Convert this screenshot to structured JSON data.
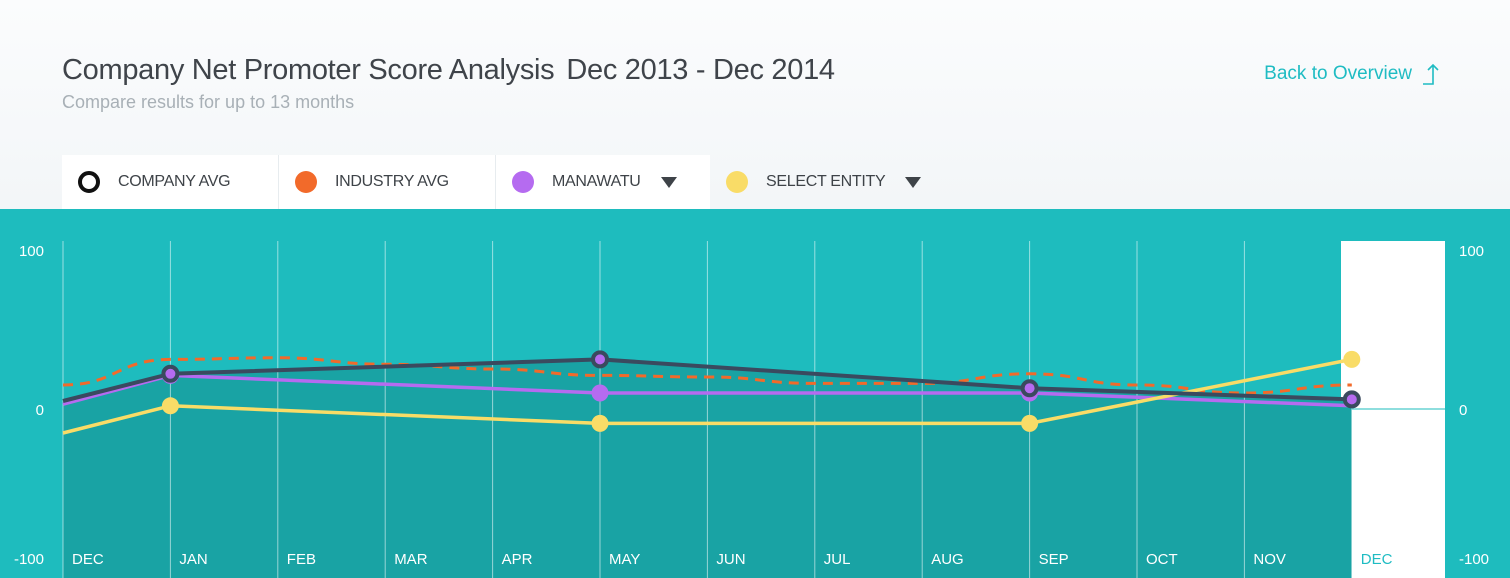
{
  "header": {
    "title": "Company Net Promoter Score Analysis",
    "date_range": "Dec 2013 - Dec 2014",
    "subtitle": "Compare results for up to 13 months",
    "back_link": "Back to Overview"
  },
  "legend": [
    {
      "label": "COMPANY AVG",
      "color": "#111111",
      "icon": "ring-icon",
      "dropdown": false
    },
    {
      "label": "INDUSTRY AVG",
      "color": "#f26a2a",
      "icon": "dot-icon",
      "dropdown": false
    },
    {
      "label": "MANAWATU",
      "color": "#b56bf0",
      "icon": "dot-icon",
      "dropdown": true
    },
    {
      "label": "SELECT ENTITY",
      "color": "#f9dc67",
      "icon": "dot-icon",
      "dropdown": true
    }
  ],
  "colors": {
    "chart_bg": "#1ebcbe",
    "area_fill": "#19a3a4",
    "company_line": "#3a4a5f",
    "industry_line": "#f26a2a",
    "manawatu_line": "#b56bf0",
    "entity_line": "#f9dc67",
    "accent": "#1fbcc3"
  },
  "chart_data": {
    "type": "line",
    "categories": [
      "DEC",
      "JAN",
      "FEB",
      "MAR",
      "APR",
      "MAY",
      "JUN",
      "JUL",
      "AUG",
      "SEP",
      "OCT",
      "NOV",
      "DEC"
    ],
    "selected_category_index": 12,
    "ylim": [
      -100,
      100
    ],
    "yticks_left": [
      "100",
      "0",
      "-100"
    ],
    "yticks_right": [
      "100",
      "0",
      "-100"
    ],
    "series": [
      {
        "name": "INDUSTRY AVG",
        "style": "dashed",
        "x": [
          0,
          1,
          2,
          3,
          4,
          5,
          6,
          7,
          8,
          9,
          10,
          11,
          12
        ],
        "values": [
          15,
          31,
          32,
          28,
          25,
          21,
          20,
          16,
          16,
          22,
          15,
          10,
          15
        ]
      },
      {
        "name": "MANAWATU",
        "style": "solid",
        "x": [
          0,
          1,
          5,
          9,
          12
        ],
        "values": [
          3,
          21,
          10,
          10,
          2
        ],
        "markers": [
          1,
          2,
          3
        ]
      },
      {
        "name": "SELECT ENTITY",
        "style": "solid",
        "x": [
          0,
          1,
          5,
          9,
          12
        ],
        "values": [
          -15,
          2,
          -9,
          -9,
          31
        ],
        "markers": [
          1,
          2,
          3,
          4
        ]
      },
      {
        "name": "COMPANY AVG",
        "style": "solid",
        "x": [
          0,
          1,
          5,
          9,
          12
        ],
        "values": [
          5,
          22,
          31,
          13,
          6
        ],
        "markers": [
          1,
          2,
          3,
          4
        ]
      }
    ]
  }
}
